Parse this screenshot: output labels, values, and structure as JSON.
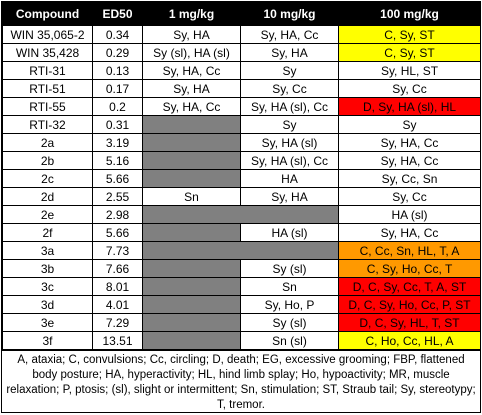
{
  "headers": [
    "Compound",
    "ED50",
    "1 mg/kg",
    "10 mg/kg",
    "100 mg/kg"
  ],
  "rows": [
    {
      "compound": "WIN 35,065-2",
      "ed50": "0.34",
      "d1": "Sy, HA",
      "d10": "Sy, HA, Cc",
      "d100": "C, Sy, ST"
    },
    {
      "compound": "WIN 35,428",
      "ed50": "0.29",
      "d1": "Sy (sl), HA (sl)",
      "d10": "Sy, HA",
      "d100": "C, Sy, ST"
    },
    {
      "compound": "RTI-31",
      "ed50": "0.13",
      "d1": "Sy, HA, Cc",
      "d10": "Sy",
      "d100": "Sy, HL, ST"
    },
    {
      "compound": "RTI-51",
      "ed50": "0.17",
      "d1": "Sy, HA",
      "d10": "Sy, Cc",
      "d100": "Sy, Cc"
    },
    {
      "compound": "RTI-55",
      "ed50": "0.2",
      "d1": "Sy, HA, Cc",
      "d10": "Sy, HA (sl), Cc",
      "d100": "D, Sy, HA (sl), HL"
    },
    {
      "compound": "RTI-32",
      "ed50": "0.31",
      "d1": "",
      "d10": "Sy",
      "d100": "Sy"
    },
    {
      "compound": "2a",
      "ed50": "3.19",
      "d1": "",
      "d10": "Sy, HA (sl)",
      "d100": "Sy, HA, Cc"
    },
    {
      "compound": "2b",
      "ed50": "5.16",
      "d1": "",
      "d10": "Sy, HA (sl), Cc",
      "d100": "Sy, HA, Cc"
    },
    {
      "compound": "2c",
      "ed50": "5.66",
      "d1": "",
      "d10": "HA",
      "d100": "Sy, Cc, Sn"
    },
    {
      "compound": "2d",
      "ed50": "2.55",
      "d1": "Sn",
      "d10": "Sy, HA",
      "d100": "Sy, Cc"
    },
    {
      "compound": "2e",
      "ed50": "2.98",
      "d1": "",
      "d10": "",
      "d100": "HA (sl)"
    },
    {
      "compound": "2f",
      "ed50": "5.66",
      "d1": "",
      "d10": "HA (sl)",
      "d100": "Sy, HA, Cc"
    },
    {
      "compound": "3a",
      "ed50": "7.73",
      "d1": "",
      "d10": "",
      "d100": "C, Cc, Sn, HL, T, A"
    },
    {
      "compound": "3b",
      "ed50": "7.66",
      "d1": "",
      "d10": "Sy (sl)",
      "d100": "C, Sy, Ho, Cc, T"
    },
    {
      "compound": "3c",
      "ed50": "8.01",
      "d1": "",
      "d10": "Sn",
      "d100": "D, C, Sy, Cc, T, A, ST"
    },
    {
      "compound": "3d",
      "ed50": "4.01",
      "d1": "",
      "d10": "Sy, Ho, P",
      "d100": "D, C, Sy, Ho, Cc, P, ST"
    },
    {
      "compound": "3e",
      "ed50": "7.29",
      "d1": "",
      "d10": "Sy (sl)",
      "d100": "D, C, Sy, HL, T, ST"
    },
    {
      "compound": "3f",
      "ed50": "13.51",
      "d1": "",
      "d10": "Sn (sl)",
      "d100": "C, Ho, Cc, HL, A"
    }
  ],
  "colors": {
    "yellow": "#ffff00",
    "red": "#ff0000",
    "orange": "#ff9900",
    "gray": "#808080"
  },
  "legend": "A, ataxia; C, convulsions; Cc, circling; D, death; EG, excessive grooming; FBP, flattened body posture; HA, hyperactivity; HL, hind limb splay; Ho, hypoactivity; MR, muscle relaxation; P, ptosis; (sl), slight or intermittent; Sn, stimulation; ST, Straub tail; Sy, stereotypy; T, tremor."
}
